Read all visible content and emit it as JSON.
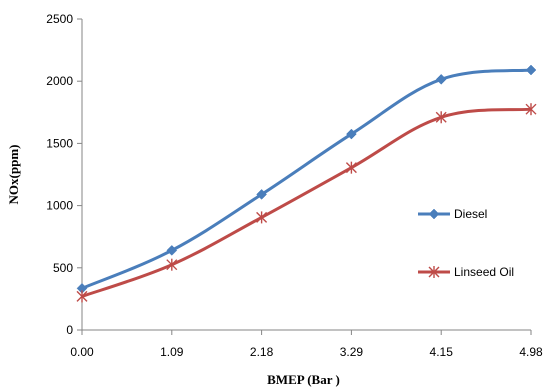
{
  "chart_data": {
    "type": "line",
    "categories": [
      "0.00",
      "1.09",
      "2.18",
      "3.29",
      "4.15",
      "4.98"
    ],
    "xlabel": "BMEP  (Bar )",
    "ylabel": "NOx(ppm)",
    "ylim": [
      0,
      2500
    ],
    "yticks": [
      0,
      500,
      1000,
      1500,
      2000,
      2500
    ],
    "grid": false,
    "legend_position": "right",
    "series": [
      {
        "name": "Diesel",
        "color": "#4a7ebb",
        "marker": "diamond",
        "values": [
          335,
          640,
          1090,
          1575,
          2015,
          2090
        ]
      },
      {
        "name": "Linseed Oil",
        "color": "#be4b48",
        "marker": "star",
        "values": [
          270,
          525,
          905,
          1305,
          1710,
          1775
        ]
      }
    ]
  }
}
